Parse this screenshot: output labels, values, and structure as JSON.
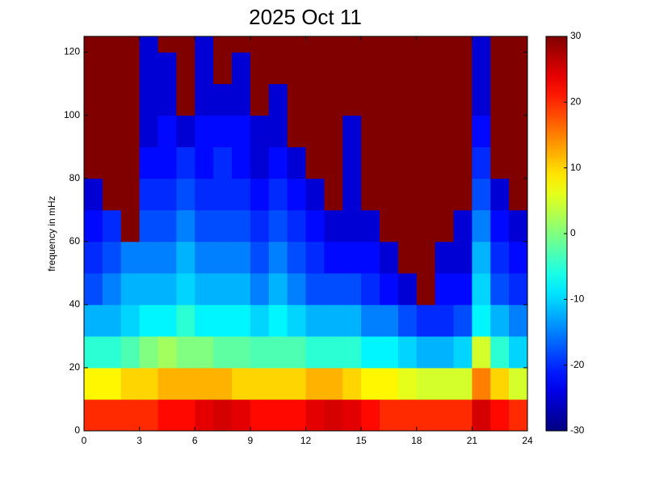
{
  "chart_data": {
    "type": "heatmap",
    "title": "2025 Oct 11",
    "y_label": "frequency in mHz",
    "colormap": "jet",
    "xbins": [
      0,
      1,
      2,
      3,
      4,
      5,
      6,
      7,
      8,
      9,
      10,
      11,
      12,
      13,
      14,
      15,
      16,
      17,
      18,
      19,
      20,
      21,
      22,
      23,
      24
    ],
    "ybins": [
      0,
      10,
      20,
      30,
      40,
      50,
      60,
      70,
      80,
      90,
      100,
      110,
      120,
      125
    ],
    "z": [
      [
        20,
        20,
        20,
        20,
        22,
        22,
        24,
        25,
        24,
        22,
        22,
        22,
        24,
        25,
        24,
        22,
        20,
        20,
        20,
        20,
        20,
        25,
        22,
        20
      ],
      [
        8,
        8,
        10,
        10,
        12,
        12,
        12,
        12,
        10,
        10,
        10,
        10,
        12,
        12,
        10,
        8,
        8,
        6,
        5,
        5,
        5,
        15,
        10,
        5
      ],
      [
        -5,
        -5,
        -3,
        0,
        2,
        0,
        0,
        -2,
        -2,
        -3,
        -3,
        -3,
        -5,
        -5,
        -5,
        -8,
        -8,
        -10,
        -12,
        -12,
        -10,
        5,
        -5,
        -10
      ],
      [
        -12,
        -12,
        -10,
        -8,
        -8,
        -5,
        -8,
        -8,
        -8,
        -10,
        -8,
        -10,
        -12,
        -12,
        -12,
        -15,
        -15,
        -18,
        -20,
        -20,
        -18,
        -8,
        -12,
        -15
      ],
      [
        -18,
        -15,
        -12,
        -12,
        -12,
        -10,
        -12,
        -12,
        -12,
        -15,
        -12,
        -15,
        -18,
        -18,
        -18,
        -20,
        -22,
        -25,
        30,
        -22,
        -22,
        -10,
        -18,
        -20
      ],
      [
        -20,
        -18,
        -15,
        -15,
        -15,
        -12,
        -15,
        -15,
        -15,
        -18,
        -15,
        -18,
        -20,
        -22,
        -22,
        -22,
        -25,
        30,
        30,
        -25,
        -25,
        -12,
        -20,
        -22
      ],
      [
        -22,
        -20,
        30,
        -18,
        -18,
        -15,
        -18,
        -18,
        -18,
        -20,
        -18,
        -20,
        -22,
        -25,
        -25,
        -25,
        30,
        30,
        30,
        30,
        -25,
        -15,
        -22,
        -25
      ],
      [
        -25,
        30,
        30,
        -20,
        -20,
        -18,
        -20,
        -20,
        -20,
        -22,
        -20,
        -22,
        -25,
        30,
        -25,
        30,
        30,
        30,
        30,
        30,
        30,
        -18,
        -25,
        30
      ],
      [
        30,
        30,
        30,
        -22,
        -22,
        -20,
        -22,
        -20,
        -22,
        -25,
        -22,
        -25,
        30,
        30,
        -25,
        30,
        30,
        30,
        30,
        30,
        30,
        -20,
        30,
        30
      ],
      [
        30,
        30,
        30,
        -25,
        -22,
        -25,
        -22,
        -22,
        -22,
        -25,
        -25,
        30,
        30,
        30,
        -25,
        30,
        30,
        30,
        30,
        30,
        30,
        -22,
        30,
        30
      ],
      [
        30,
        30,
        30,
        -25,
        -25,
        30,
        -25,
        -25,
        -25,
        30,
        -25,
        30,
        30,
        30,
        30,
        30,
        30,
        30,
        30,
        30,
        30,
        -25,
        30,
        30
      ],
      [
        30,
        30,
        30,
        -25,
        -25,
        30,
        -25,
        30,
        -25,
        30,
        30,
        30,
        30,
        30,
        30,
        30,
        30,
        30,
        30,
        30,
        30,
        -25,
        30,
        30
      ],
      [
        30,
        30,
        30,
        -25,
        30,
        30,
        -25,
        30,
        30,
        30,
        30,
        30,
        30,
        30,
        30,
        30,
        30,
        30,
        30,
        30,
        30,
        -25,
        30,
        30
      ]
    ],
    "xlim": [
      0,
      24
    ],
    "xticks": [
      0,
      3,
      6,
      9,
      12,
      15,
      18,
      21,
      24
    ],
    "ylim": [
      0,
      125
    ],
    "yticks": [
      0,
      20,
      40,
      60,
      80,
      100,
      120
    ],
    "clim": [
      -30,
      30
    ],
    "cticks": [
      -30,
      -20,
      -10,
      0,
      10,
      20,
      30
    ]
  }
}
